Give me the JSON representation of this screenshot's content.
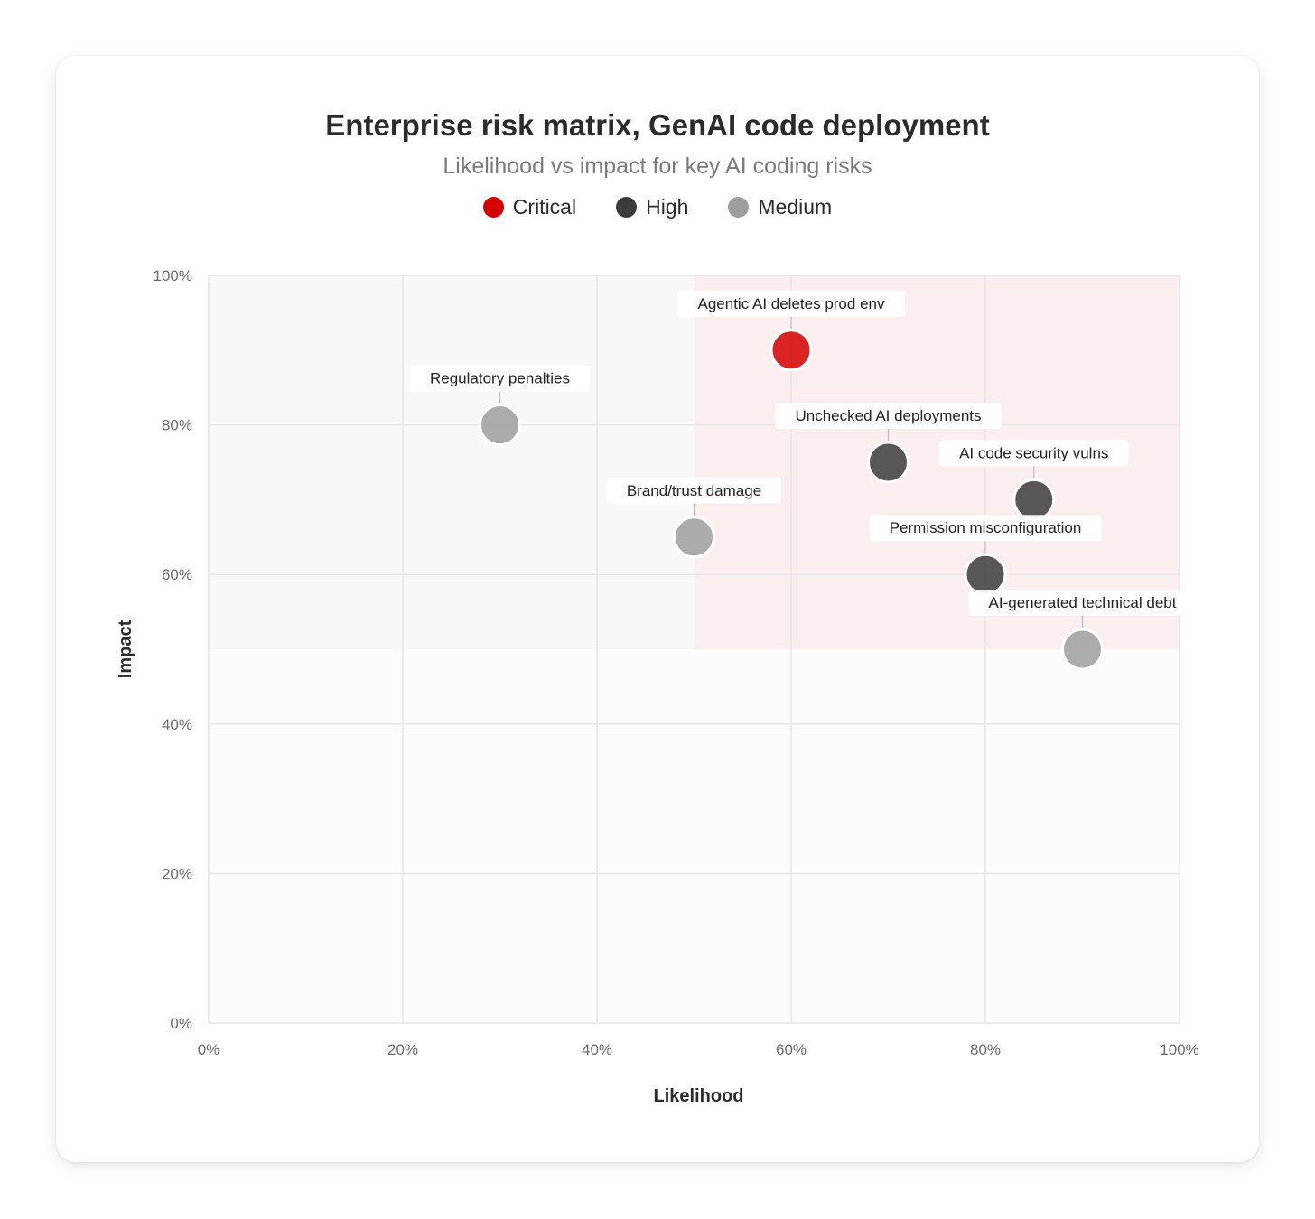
{
  "chart_data": {
    "type": "scatter",
    "title": "Enterprise risk matrix, GenAI code deployment",
    "subtitle": "Likelihood vs impact for key AI coding risks",
    "xlabel": "Likelihood",
    "ylabel": "Impact",
    "xlim": [
      0,
      100
    ],
    "ylim": [
      0,
      100
    ],
    "x_ticks": [
      "0%",
      "20%",
      "40%",
      "60%",
      "80%",
      "100%"
    ],
    "y_ticks": [
      "0%",
      "20%",
      "40%",
      "60%",
      "80%",
      "100%"
    ],
    "grid": true,
    "legend_position": "top-center",
    "highlight_zone": {
      "x": [
        50,
        100
      ],
      "y": [
        50,
        100
      ],
      "color": "#fbeeee"
    },
    "legend": [
      {
        "name": "Critical",
        "color": "#d40000"
      },
      {
        "name": "High",
        "color": "#3b3b3b"
      },
      {
        "name": "Medium",
        "color": "#9e9e9e"
      }
    ],
    "points": [
      {
        "label": "Agentic AI deletes prod env",
        "x": 60,
        "y": 90,
        "severity": "Critical"
      },
      {
        "label": "Regulatory penalties",
        "x": 30,
        "y": 80,
        "severity": "Medium"
      },
      {
        "label": "Unchecked AI deployments",
        "x": 70,
        "y": 75,
        "severity": "High"
      },
      {
        "label": "AI code security vulns",
        "x": 85,
        "y": 70,
        "severity": "High"
      },
      {
        "label": "Brand/trust damage",
        "x": 50,
        "y": 65,
        "severity": "Medium"
      },
      {
        "label": "Permission misconfiguration",
        "x": 80,
        "y": 60,
        "severity": "High"
      },
      {
        "label": "AI-generated technical debt",
        "x": 90,
        "y": 50,
        "severity": "Medium"
      }
    ]
  }
}
